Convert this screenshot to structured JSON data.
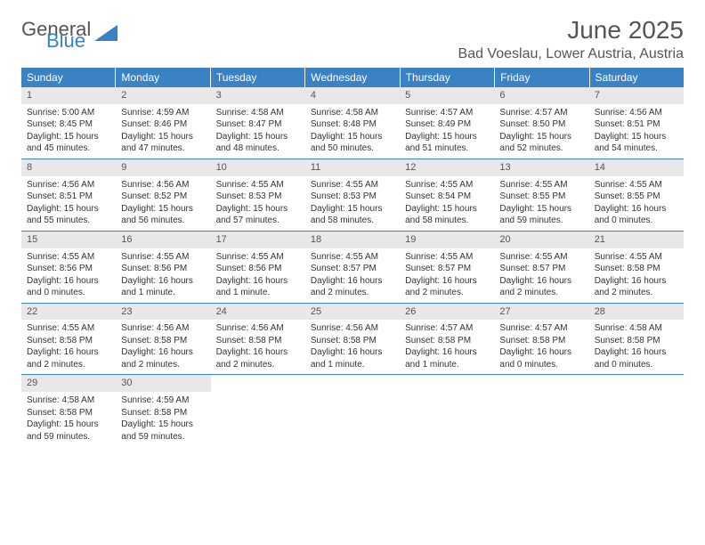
{
  "logo": {
    "text1": "General",
    "text2": "Blue"
  },
  "title": "June 2025",
  "location": "Bad Voeslau, Lower Austria, Austria",
  "colors": {
    "header_bg": "#3b82c4",
    "daynum_bg": "#e8e8e8",
    "border": "#3b82c4",
    "text": "#333333",
    "title_text": "#555555"
  },
  "weekdays": [
    "Sunday",
    "Monday",
    "Tuesday",
    "Wednesday",
    "Thursday",
    "Friday",
    "Saturday"
  ],
  "weeks": [
    [
      {
        "n": "1",
        "sr": "Sunrise: 5:00 AM",
        "ss": "Sunset: 8:45 PM",
        "d1": "Daylight: 15 hours",
        "d2": "and 45 minutes."
      },
      {
        "n": "2",
        "sr": "Sunrise: 4:59 AM",
        "ss": "Sunset: 8:46 PM",
        "d1": "Daylight: 15 hours",
        "d2": "and 47 minutes."
      },
      {
        "n": "3",
        "sr": "Sunrise: 4:58 AM",
        "ss": "Sunset: 8:47 PM",
        "d1": "Daylight: 15 hours",
        "d2": "and 48 minutes."
      },
      {
        "n": "4",
        "sr": "Sunrise: 4:58 AM",
        "ss": "Sunset: 8:48 PM",
        "d1": "Daylight: 15 hours",
        "d2": "and 50 minutes."
      },
      {
        "n": "5",
        "sr": "Sunrise: 4:57 AM",
        "ss": "Sunset: 8:49 PM",
        "d1": "Daylight: 15 hours",
        "d2": "and 51 minutes."
      },
      {
        "n": "6",
        "sr": "Sunrise: 4:57 AM",
        "ss": "Sunset: 8:50 PM",
        "d1": "Daylight: 15 hours",
        "d2": "and 52 minutes."
      },
      {
        "n": "7",
        "sr": "Sunrise: 4:56 AM",
        "ss": "Sunset: 8:51 PM",
        "d1": "Daylight: 15 hours",
        "d2": "and 54 minutes."
      }
    ],
    [
      {
        "n": "8",
        "sr": "Sunrise: 4:56 AM",
        "ss": "Sunset: 8:51 PM",
        "d1": "Daylight: 15 hours",
        "d2": "and 55 minutes."
      },
      {
        "n": "9",
        "sr": "Sunrise: 4:56 AM",
        "ss": "Sunset: 8:52 PM",
        "d1": "Daylight: 15 hours",
        "d2": "and 56 minutes."
      },
      {
        "n": "10",
        "sr": "Sunrise: 4:55 AM",
        "ss": "Sunset: 8:53 PM",
        "d1": "Daylight: 15 hours",
        "d2": "and 57 minutes."
      },
      {
        "n": "11",
        "sr": "Sunrise: 4:55 AM",
        "ss": "Sunset: 8:53 PM",
        "d1": "Daylight: 15 hours",
        "d2": "and 58 minutes."
      },
      {
        "n": "12",
        "sr": "Sunrise: 4:55 AM",
        "ss": "Sunset: 8:54 PM",
        "d1": "Daylight: 15 hours",
        "d2": "and 58 minutes."
      },
      {
        "n": "13",
        "sr": "Sunrise: 4:55 AM",
        "ss": "Sunset: 8:55 PM",
        "d1": "Daylight: 15 hours",
        "d2": "and 59 minutes."
      },
      {
        "n": "14",
        "sr": "Sunrise: 4:55 AM",
        "ss": "Sunset: 8:55 PM",
        "d1": "Daylight: 16 hours",
        "d2": "and 0 minutes."
      }
    ],
    [
      {
        "n": "15",
        "sr": "Sunrise: 4:55 AM",
        "ss": "Sunset: 8:56 PM",
        "d1": "Daylight: 16 hours",
        "d2": "and 0 minutes."
      },
      {
        "n": "16",
        "sr": "Sunrise: 4:55 AM",
        "ss": "Sunset: 8:56 PM",
        "d1": "Daylight: 16 hours",
        "d2": "and 1 minute."
      },
      {
        "n": "17",
        "sr": "Sunrise: 4:55 AM",
        "ss": "Sunset: 8:56 PM",
        "d1": "Daylight: 16 hours",
        "d2": "and 1 minute."
      },
      {
        "n": "18",
        "sr": "Sunrise: 4:55 AM",
        "ss": "Sunset: 8:57 PM",
        "d1": "Daylight: 16 hours",
        "d2": "and 2 minutes."
      },
      {
        "n": "19",
        "sr": "Sunrise: 4:55 AM",
        "ss": "Sunset: 8:57 PM",
        "d1": "Daylight: 16 hours",
        "d2": "and 2 minutes."
      },
      {
        "n": "20",
        "sr": "Sunrise: 4:55 AM",
        "ss": "Sunset: 8:57 PM",
        "d1": "Daylight: 16 hours",
        "d2": "and 2 minutes."
      },
      {
        "n": "21",
        "sr": "Sunrise: 4:55 AM",
        "ss": "Sunset: 8:58 PM",
        "d1": "Daylight: 16 hours",
        "d2": "and 2 minutes."
      }
    ],
    [
      {
        "n": "22",
        "sr": "Sunrise: 4:55 AM",
        "ss": "Sunset: 8:58 PM",
        "d1": "Daylight: 16 hours",
        "d2": "and 2 minutes."
      },
      {
        "n": "23",
        "sr": "Sunrise: 4:56 AM",
        "ss": "Sunset: 8:58 PM",
        "d1": "Daylight: 16 hours",
        "d2": "and 2 minutes."
      },
      {
        "n": "24",
        "sr": "Sunrise: 4:56 AM",
        "ss": "Sunset: 8:58 PM",
        "d1": "Daylight: 16 hours",
        "d2": "and 2 minutes."
      },
      {
        "n": "25",
        "sr": "Sunrise: 4:56 AM",
        "ss": "Sunset: 8:58 PM",
        "d1": "Daylight: 16 hours",
        "d2": "and 1 minute."
      },
      {
        "n": "26",
        "sr": "Sunrise: 4:57 AM",
        "ss": "Sunset: 8:58 PM",
        "d1": "Daylight: 16 hours",
        "d2": "and 1 minute."
      },
      {
        "n": "27",
        "sr": "Sunrise: 4:57 AM",
        "ss": "Sunset: 8:58 PM",
        "d1": "Daylight: 16 hours",
        "d2": "and 0 minutes."
      },
      {
        "n": "28",
        "sr": "Sunrise: 4:58 AM",
        "ss": "Sunset: 8:58 PM",
        "d1": "Daylight: 16 hours",
        "d2": "and 0 minutes."
      }
    ],
    [
      {
        "n": "29",
        "sr": "Sunrise: 4:58 AM",
        "ss": "Sunset: 8:58 PM",
        "d1": "Daylight: 15 hours",
        "d2": "and 59 minutes."
      },
      {
        "n": "30",
        "sr": "Sunrise: 4:59 AM",
        "ss": "Sunset: 8:58 PM",
        "d1": "Daylight: 15 hours",
        "d2": "and 59 minutes."
      },
      null,
      null,
      null,
      null,
      null
    ]
  ]
}
